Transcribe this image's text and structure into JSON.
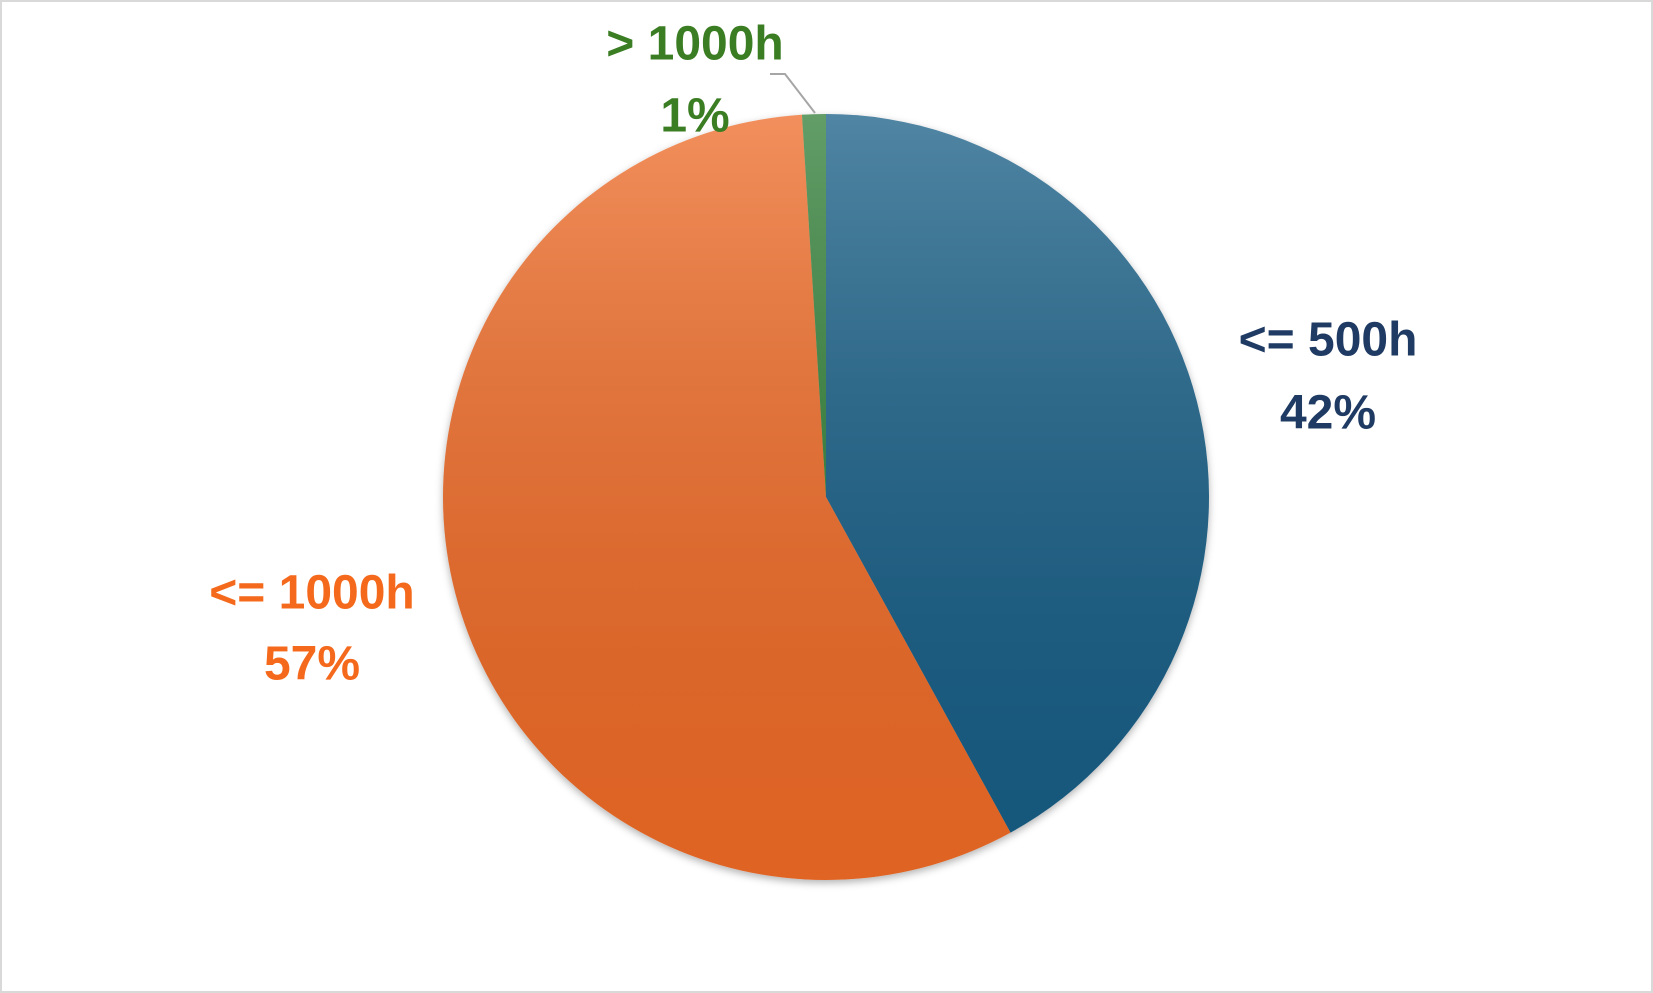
{
  "chart_data": {
    "type": "pie",
    "categories": [
      "<= 500h",
      "<= 1000h",
      "> 1000h"
    ],
    "values": [
      42,
      57,
      1
    ],
    "value_labels": [
      "42%",
      "57%",
      "1%"
    ],
    "colors": [
      "#155d85",
      "#ee6a25",
      "#2f7d34"
    ],
    "label_colors": [
      "#1f3b63",
      "#f4691c",
      "#3b7d23"
    ]
  }
}
